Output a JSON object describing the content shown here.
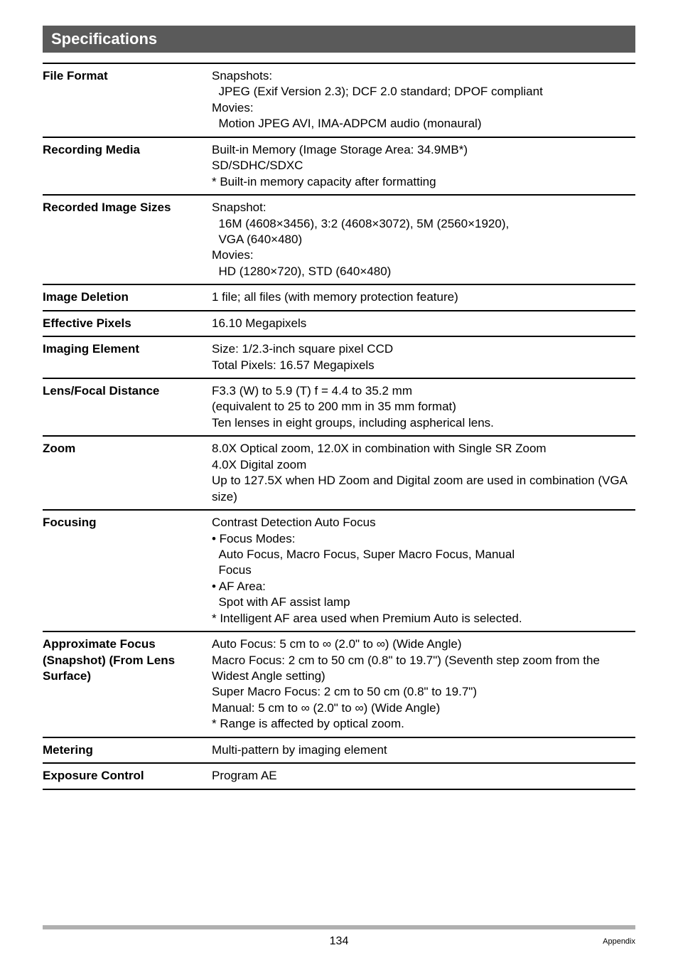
{
  "colors": {
    "header_bg": "#5a5a5a",
    "header_text": "#ffffff",
    "border": "#000000",
    "footer_bar": "#b0b0b0",
    "page_bg": "#ffffff",
    "text": "#000000"
  },
  "typography": {
    "header_fontsize": 22,
    "body_fontsize": 17,
    "footer_page_fontsize": 16,
    "footer_label_fontsize": 11,
    "font_family": "Arial, Helvetica, sans-serif"
  },
  "section_title": "Specifications",
  "rows": [
    {
      "label": "File Format",
      "value": "Snapshots:\n  JPEG (Exif Version 2.3); DCF 2.0 standard; DPOF compliant\nMovies:\n  Motion JPEG AVI, IMA-ADPCM audio (monaural)"
    },
    {
      "label": "Recording Media",
      "value": "Built-in Memory (Image Storage Area: 34.9MB*)\nSD/SDHC/SDXC\n* Built-in memory capacity after formatting"
    },
    {
      "label": "Recorded Image Sizes",
      "value": "Snapshot:\n  16M (4608×3456), 3:2 (4608×3072), 5M (2560×1920),\n  VGA (640×480)\nMovies:\n  HD (1280×720), STD (640×480)"
    },
    {
      "label": "Image Deletion",
      "value": "1 file; all files (with memory protection feature)"
    },
    {
      "label": "Effective Pixels",
      "value": "16.10 Megapixels"
    },
    {
      "label": "Imaging Element",
      "value": "Size: 1/2.3-inch square pixel CCD\nTotal Pixels: 16.57 Megapixels"
    },
    {
      "label": "Lens/Focal Distance",
      "value": "F3.3 (W) to 5.9 (T) f = 4.4 to 35.2 mm\n(equivalent to 25 to 200 mm in 35 mm format)\nTen lenses in eight groups, including aspherical lens."
    },
    {
      "label": "Zoom",
      "value": "8.0X Optical zoom, 12.0X in combination with Single SR Zoom\n4.0X Digital zoom\nUp to 127.5X when HD Zoom and Digital zoom are used in combination (VGA size)"
    },
    {
      "label": "Focusing",
      "value": "Contrast Detection Auto Focus\n• Focus Modes:\n  Auto Focus, Macro Focus, Super Macro Focus, Manual\n  Focus\n• AF Area:\n  Spot with AF assist lamp\n* Intelligent AF area used when Premium Auto is selected."
    },
    {
      "label": "Approximate Focus (Snapshot)\n(From Lens Surface)",
      "value": "Auto Focus: 5 cm to ∞ (2.0\" to ∞) (Wide Angle)\nMacro Focus: 2 cm to 50 cm (0.8\" to 19.7\") (Seventh step zoom from the Widest Angle setting)\nSuper Macro Focus: 2 cm to 50 cm (0.8\" to 19.7\")\nManual: 5 cm to ∞ (2.0\" to ∞) (Wide Angle)\n* Range is affected by optical zoom."
    },
    {
      "label": "Metering",
      "value": "Multi-pattern by imaging element"
    },
    {
      "label": "Exposure Control",
      "value": "Program AE"
    }
  ],
  "footer": {
    "page_number": "134",
    "section_label": "Appendix"
  }
}
